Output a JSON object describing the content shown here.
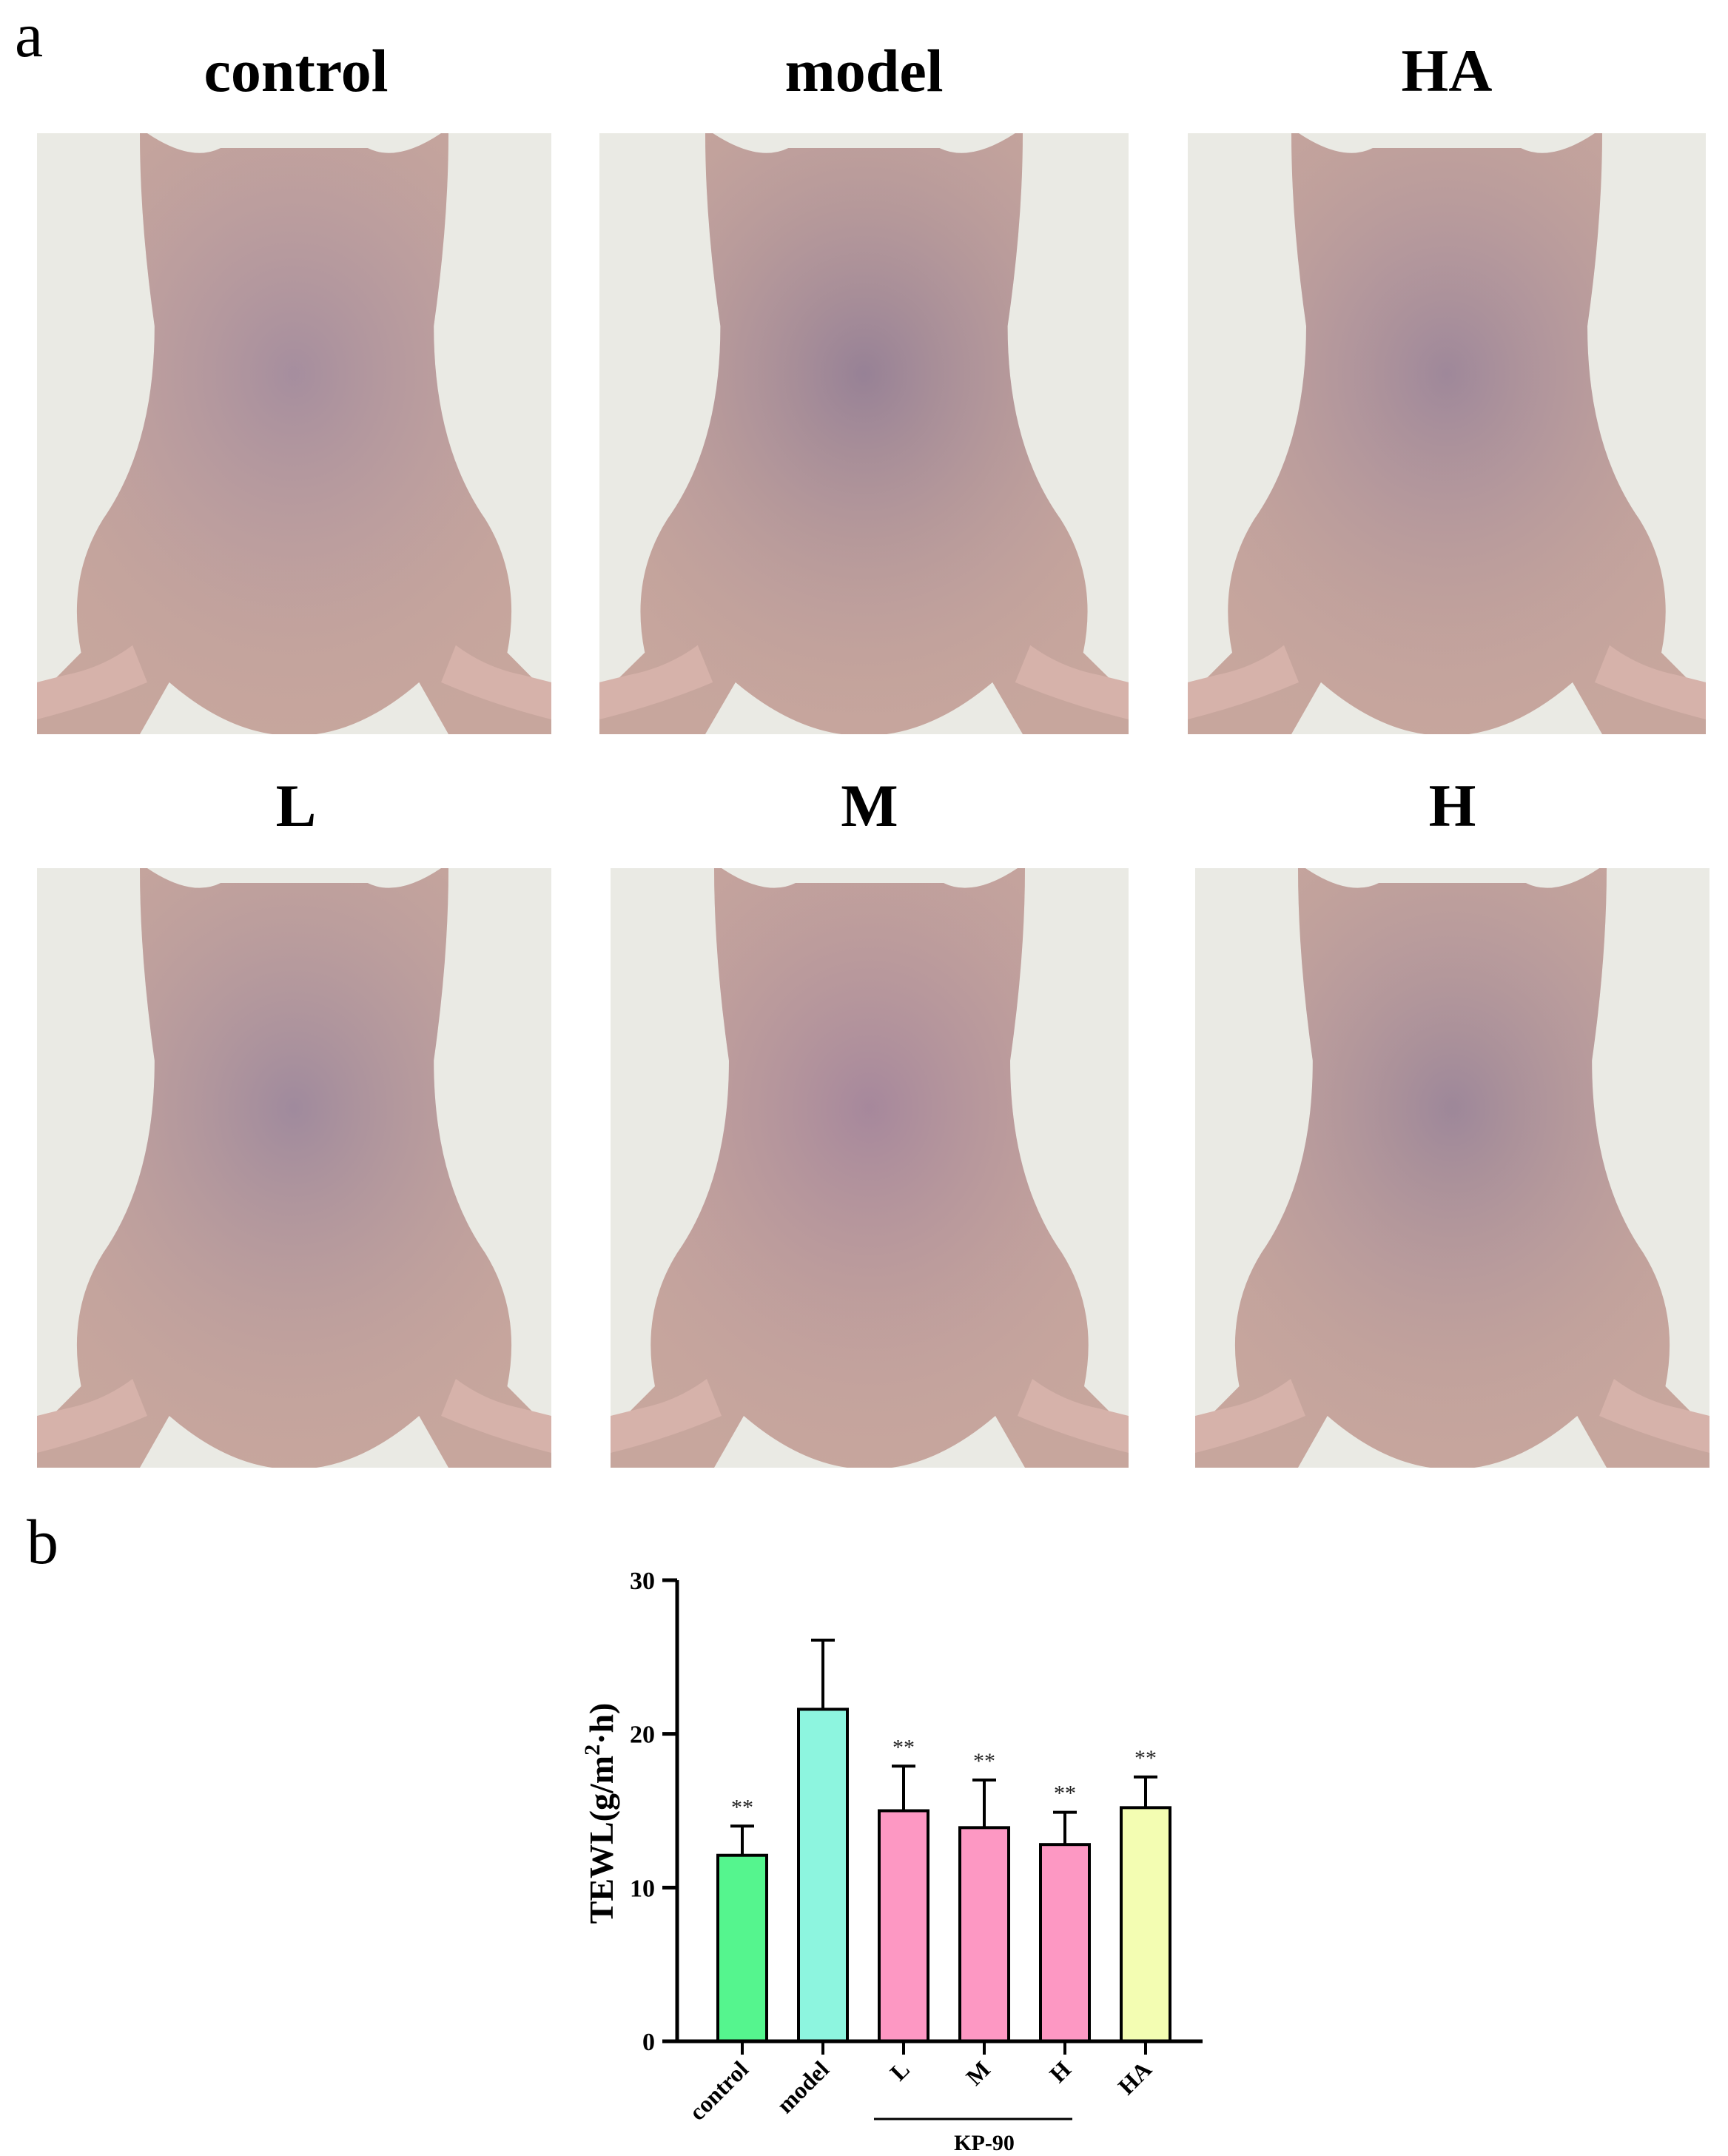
{
  "panels": {
    "a": "a",
    "b": "b"
  },
  "photos": [
    {
      "label": "control"
    },
    {
      "label": "model"
    },
    {
      "label": "HA"
    },
    {
      "label": "L"
    },
    {
      "label": "M"
    },
    {
      "label": "H"
    }
  ],
  "chart_data": {
    "type": "bar",
    "ylabel_main": "TEWL(g/m",
    "ylabel_sup": "2",
    "ylabel_end": "·h)",
    "ylim": [
      0,
      30
    ],
    "yticks": [
      0,
      10,
      20,
      30
    ],
    "categories": [
      "control",
      "model",
      "L",
      "M",
      "H",
      "HA"
    ],
    "values": [
      12.1,
      21.6,
      15.0,
      13.9,
      12.8,
      15.2
    ],
    "errors": [
      1.9,
      4.5,
      2.9,
      3.1,
      2.1,
      2.0
    ],
    "significance": [
      "**",
      "",
      "**",
      "**",
      "**",
      "**"
    ],
    "bar_colors": [
      "#55F58E",
      "#8DF5DF",
      "#FD98C3",
      "#FD98C3",
      "#FD98C3",
      "#F3FDB2"
    ],
    "group_label": "KP-90",
    "group_members": [
      "L",
      "M",
      "H"
    ]
  }
}
